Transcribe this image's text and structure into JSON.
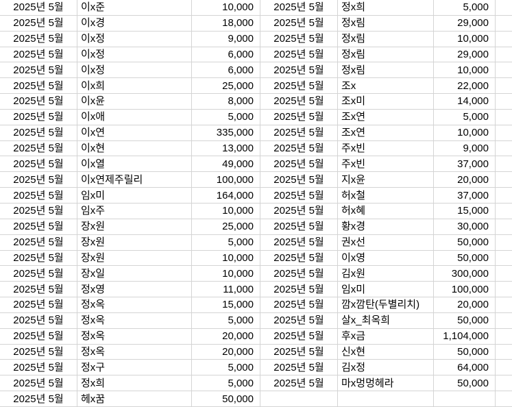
{
  "grid": {
    "gridline_color": "#d4d4d4",
    "background_color": "#ffffff",
    "text_color": "#000000",
    "left_rows": [
      {
        "date": "2025년 5월",
        "name": "이x준",
        "amount": "10,000"
      },
      {
        "date": "2025년 5월",
        "name": "이x경",
        "amount": "18,000"
      },
      {
        "date": "2025년 5월",
        "name": "이x정",
        "amount": "9,000"
      },
      {
        "date": "2025년 5월",
        "name": "이x정",
        "amount": "6,000"
      },
      {
        "date": "2025년 5월",
        "name": "이x정",
        "amount": "6,000"
      },
      {
        "date": "2025년 5월",
        "name": "이x희",
        "amount": "25,000"
      },
      {
        "date": "2025년 5월",
        "name": "이x윤",
        "amount": "8,000"
      },
      {
        "date": "2025년 5월",
        "name": "이x애",
        "amount": "5,000"
      },
      {
        "date": "2025년 5월",
        "name": "이x연",
        "amount": "335,000"
      },
      {
        "date": "2025년 5월",
        "name": "이x현",
        "amount": "13,000"
      },
      {
        "date": "2025년 5월",
        "name": "이x열",
        "amount": "49,000"
      },
      {
        "date": "2025년 5월",
        "name": "이x연제주릴리",
        "amount": "100,000"
      },
      {
        "date": "2025년 5월",
        "name": "임x미",
        "amount": "164,000"
      },
      {
        "date": "2025년 5월",
        "name": "임x주",
        "amount": "10,000"
      },
      {
        "date": "2025년 5월",
        "name": "장x원",
        "amount": "25,000"
      },
      {
        "date": "2025년 5월",
        "name": "장x원",
        "amount": "5,000"
      },
      {
        "date": "2025년 5월",
        "name": "장x원",
        "amount": "10,000"
      },
      {
        "date": "2025년 5월",
        "name": "장x일",
        "amount": "10,000"
      },
      {
        "date": "2025년 5월",
        "name": "정x영",
        "amount": "11,000"
      },
      {
        "date": "2025년 5월",
        "name": "정x옥",
        "amount": "15,000"
      },
      {
        "date": "2025년 5월",
        "name": "정x옥",
        "amount": "5,000"
      },
      {
        "date": "2025년 5월",
        "name": "정x옥",
        "amount": "20,000"
      },
      {
        "date": "2025년 5월",
        "name": "정x옥",
        "amount": "20,000"
      },
      {
        "date": "2025년 5월",
        "name": "정x구",
        "amount": "5,000"
      },
      {
        "date": "2025년 5월",
        "name": "정x희",
        "amount": "5,000"
      },
      {
        "date": "2025년 5월",
        "name": "헤x꿈",
        "amount": "50,000"
      }
    ],
    "right_rows": [
      {
        "date": "2025년 5월",
        "name": "정x희",
        "amount": "5,000"
      },
      {
        "date": "2025년 5월",
        "name": "정x림",
        "amount": "29,000"
      },
      {
        "date": "2025년 5월",
        "name": "정x림",
        "amount": "10,000"
      },
      {
        "date": "2025년 5월",
        "name": "정x림",
        "amount": "29,000"
      },
      {
        "date": "2025년 5월",
        "name": "정x림",
        "amount": "10,000"
      },
      {
        "date": "2025년 5월",
        "name": "조x",
        "amount": "22,000"
      },
      {
        "date": "2025년 5월",
        "name": "조x미",
        "amount": "14,000"
      },
      {
        "date": "2025년 5월",
        "name": "조x연",
        "amount": "5,000"
      },
      {
        "date": "2025년 5월",
        "name": "조x연",
        "amount": "10,000"
      },
      {
        "date": "2025년 5월",
        "name": "주x빈",
        "amount": "9,000"
      },
      {
        "date": "2025년 5월",
        "name": "주x빈",
        "amount": "37,000"
      },
      {
        "date": "2025년 5월",
        "name": "지x윤",
        "amount": "20,000"
      },
      {
        "date": "2025년 5월",
        "name": "허x철",
        "amount": "37,000"
      },
      {
        "date": "2025년 5월",
        "name": "허x혜",
        "amount": "15,000"
      },
      {
        "date": "2025년 5월",
        "name": "황x경",
        "amount": "30,000"
      },
      {
        "date": "2025년 5월",
        "name": "권x선",
        "amount": "50,000"
      },
      {
        "date": "2025년 5월",
        "name": "이x영",
        "amount": "50,000"
      },
      {
        "date": "2025년 5월",
        "name": "김x원",
        "amount": "300,000"
      },
      {
        "date": "2025년 5월",
        "name": "임x미",
        "amount": "100,000"
      },
      {
        "date": "2025년 5월",
        "name": "깜x깜탄(두별리치)",
        "amount": "20,000"
      },
      {
        "date": "2025년 5월",
        "name": "살x_최옥희",
        "amount": "50,000"
      },
      {
        "date": "2025년 5월",
        "name": "후x금",
        "amount": "1,104,000"
      },
      {
        "date": "2025년 5월",
        "name": "신x현",
        "amount": "50,000"
      },
      {
        "date": "2025년 5월",
        "name": "김x정",
        "amount": "64,000"
      },
      {
        "date": "2025년 5월",
        "name": "마x멍멍헤라",
        "amount": "50,000"
      },
      {
        "date": "",
        "name": "",
        "amount": ""
      }
    ]
  }
}
